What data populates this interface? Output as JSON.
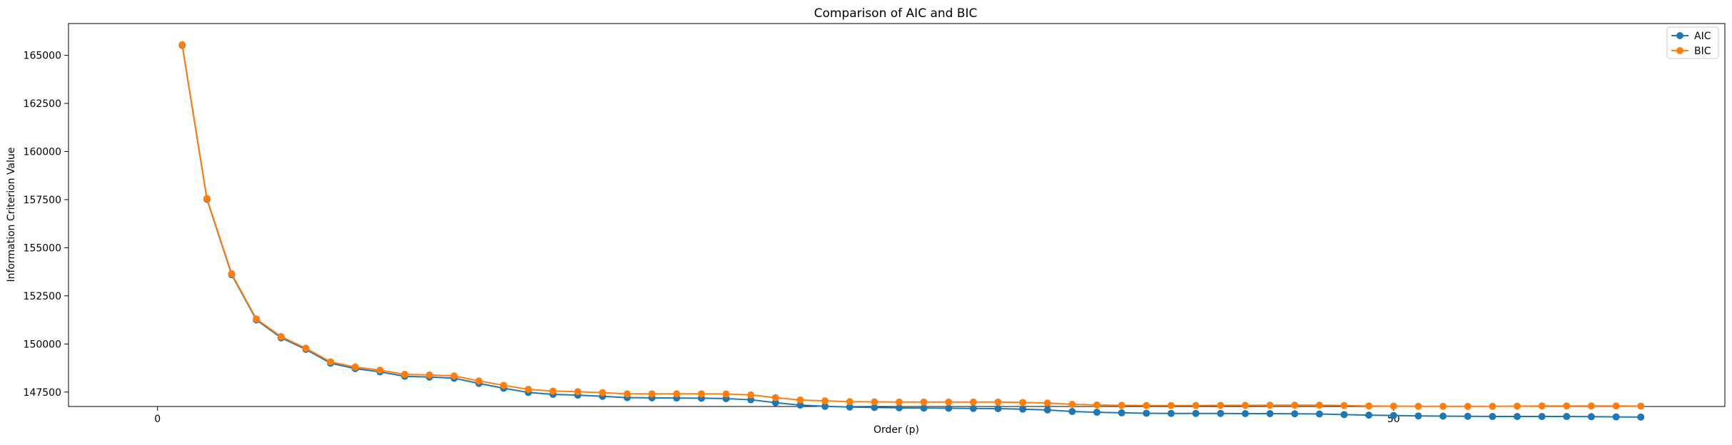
{
  "chart_data": {
    "type": "line",
    "title": "Comparison of AIC and BIC",
    "xlabel": "Order (p)",
    "ylabel": "Information Criterion Value",
    "xlim": [
      -3.6,
      63.4
    ],
    "ylim": [
      146750,
      166650
    ],
    "xticks": [
      0,
      50
    ],
    "xtick_labels": [
      "0",
      "50"
    ],
    "yticks": [
      147500,
      150000,
      152500,
      155000,
      157500,
      160000,
      162500,
      165000
    ],
    "ytick_labels": [
      "147500",
      "150000",
      "152500",
      "155000",
      "157500",
      "160000",
      "162500",
      "165000"
    ],
    "grid": false,
    "legend_position": "top-right",
    "x": [
      1,
      2,
      3,
      4,
      5,
      6,
      7,
      8,
      9,
      10,
      11,
      12,
      13,
      14,
      15,
      16,
      17,
      18,
      19,
      20,
      21,
      22,
      23,
      24,
      25,
      26,
      27,
      28,
      29,
      30,
      31,
      32,
      33,
      34,
      35,
      36,
      37,
      38,
      39,
      40,
      41,
      42,
      43,
      44,
      45,
      46,
      47,
      48,
      49,
      50,
      51,
      52,
      53,
      54,
      55,
      56,
      57,
      58,
      59,
      60
    ],
    "series": [
      {
        "name": "AIC",
        "color": "#1f77b4",
        "values": [
          165520,
          157520,
          153600,
          151250,
          150320,
          149720,
          149000,
          148720,
          148550,
          148320,
          148280,
          148220,
          147950,
          147700,
          147480,
          147380,
          147340,
          147280,
          147210,
          147200,
          147190,
          147180,
          147160,
          147100,
          146950,
          146820,
          146760,
          146720,
          146700,
          146680,
          146670,
          146660,
          146650,
          146640,
          146610,
          146570,
          146490,
          146450,
          146420,
          146400,
          146390,
          146390,
          146390,
          146380,
          146380,
          146370,
          146360,
          146330,
          146300,
          146280,
          146260,
          146250,
          146240,
          146230,
          146230,
          146230,
          146230,
          146220,
          146210,
          146200
        ]
      },
      {
        "name": "BIC",
        "color": "#ff7f0e",
        "values": [
          165550,
          157560,
          153650,
          151300,
          150380,
          149780,
          149070,
          148800,
          148640,
          148420,
          148390,
          148340,
          148080,
          147850,
          147640,
          147550,
          147520,
          147470,
          147410,
          147410,
          147410,
          147410,
          147400,
          147350,
          147210,
          147090,
          147040,
          147000,
          146990,
          146980,
          146980,
          146980,
          146980,
          146980,
          146960,
          146930,
          146860,
          146830,
          146810,
          146800,
          146800,
          146800,
          146810,
          146810,
          146820,
          146820,
          146820,
          146800,
          146780,
          146770,
          146760,
          146760,
          146760,
          146760,
          146770,
          146780,
          146780,
          146780,
          146780,
          146770
        ]
      }
    ]
  }
}
